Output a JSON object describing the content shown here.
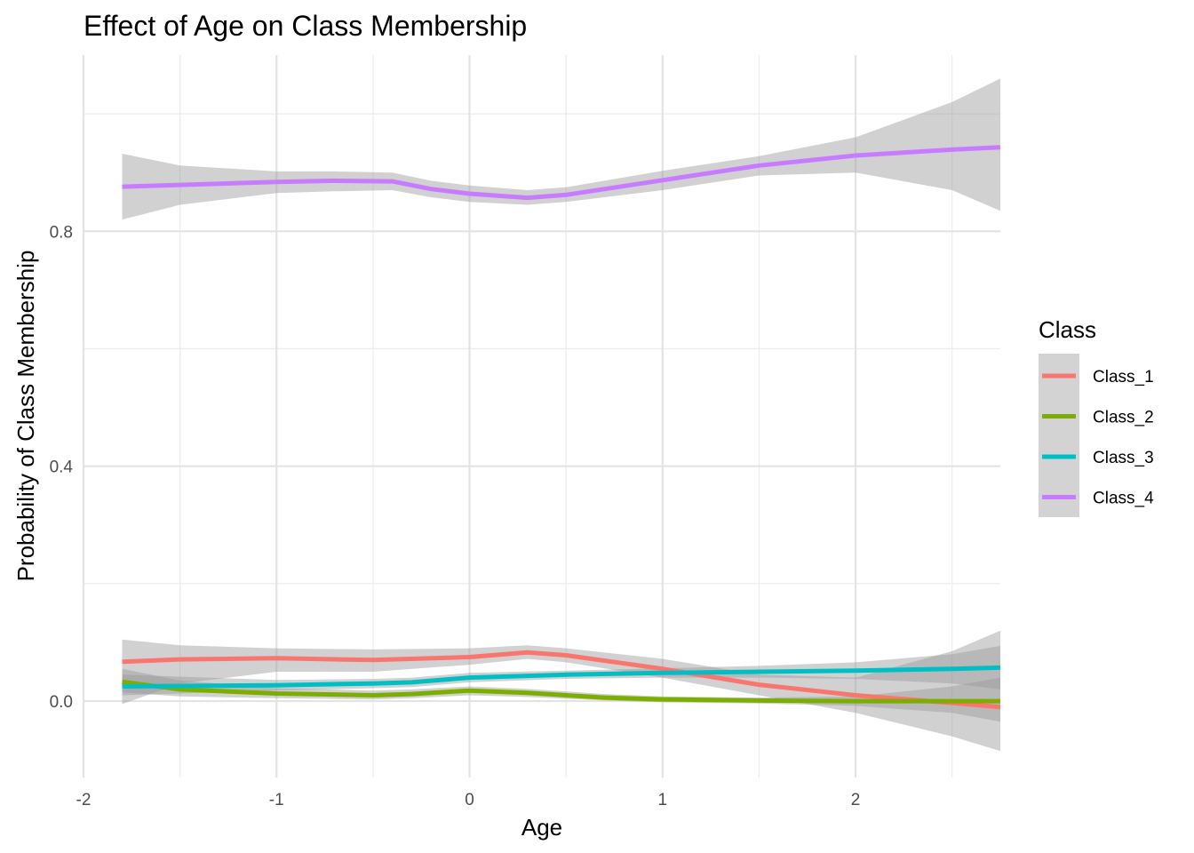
{
  "chart_data": {
    "type": "line",
    "title": "Effect of Age on Class Membership",
    "xlabel": "Age",
    "ylabel": "Probability of Class Membership",
    "xlim": [
      -2,
      2.75
    ],
    "ylim": [
      -0.13,
      1.1
    ],
    "x_ticks": [
      "-2",
      "-1",
      "0",
      "1",
      "2"
    ],
    "x_tick_values": [
      -2,
      -1,
      0,
      1,
      2
    ],
    "y_ticks": [
      "0.0",
      "0.4",
      "0.8"
    ],
    "y_tick_values": [
      0.0,
      0.4,
      0.8
    ],
    "grid": true,
    "legend": {
      "title": "Class",
      "position": "right"
    },
    "series": [
      {
        "name": "Class_1",
        "color": "#F8766D",
        "x": [
          -1.8,
          -1.5,
          -1.0,
          -0.5,
          0.0,
          0.3,
          0.5,
          1.0,
          1.5,
          2.0,
          2.5,
          2.75
        ],
        "y": [
          0.067,
          0.071,
          0.073,
          0.07,
          0.075,
          0.083,
          0.078,
          0.055,
          0.028,
          0.01,
          -0.003,
          -0.01
        ],
        "lower": [
          -0.005,
          0.03,
          0.05,
          0.05,
          0.062,
          0.072,
          0.066,
          0.04,
          0.01,
          -0.02,
          -0.06,
          -0.085
        ],
        "upper": [
          0.105,
          0.095,
          0.09,
          0.088,
          0.09,
          0.095,
          0.09,
          0.072,
          0.045,
          0.04,
          0.085,
          0.12
        ]
      },
      {
        "name": "Class_2",
        "color": "#7CAE00",
        "x": [
          -1.8,
          -1.5,
          -1.0,
          -0.5,
          -0.3,
          0.0,
          0.3,
          0.7,
          1.0,
          1.5,
          2.0,
          2.5,
          2.75
        ],
        "y": [
          0.033,
          0.02,
          0.013,
          0.01,
          0.012,
          0.018,
          0.014,
          0.006,
          0.003,
          0.001,
          0.0,
          0.0,
          0.0
        ],
        "lower": [
          0.015,
          0.008,
          0.005,
          0.003,
          0.005,
          0.01,
          0.007,
          0.001,
          -0.002,
          -0.004,
          -0.008,
          -0.02,
          -0.035
        ],
        "upper": [
          0.055,
          0.035,
          0.022,
          0.018,
          0.02,
          0.025,
          0.021,
          0.012,
          0.008,
          0.006,
          0.008,
          0.025,
          0.04
        ]
      },
      {
        "name": "Class_3",
        "color": "#00BFC4",
        "x": [
          -1.8,
          -1.0,
          -0.5,
          -0.3,
          0.0,
          0.5,
          1.0,
          1.5,
          2.0,
          2.5,
          2.75
        ],
        "y": [
          0.025,
          0.027,
          0.03,
          0.032,
          0.04,
          0.045,
          0.048,
          0.05,
          0.052,
          0.055,
          0.057
        ],
        "lower": [
          0.01,
          0.018,
          0.022,
          0.024,
          0.032,
          0.038,
          0.04,
          0.04,
          0.038,
          0.03,
          0.02
        ],
        "upper": [
          0.045,
          0.036,
          0.038,
          0.04,
          0.048,
          0.052,
          0.056,
          0.06,
          0.066,
          0.08,
          0.094
        ]
      },
      {
        "name": "Class_4",
        "color": "#C77CFF",
        "x": [
          -1.8,
          -1.5,
          -1.0,
          -0.7,
          -0.4,
          -0.2,
          0.0,
          0.3,
          0.5,
          1.0,
          1.5,
          2.0,
          2.5,
          2.75
        ],
        "y": [
          0.876,
          0.879,
          0.884,
          0.886,
          0.885,
          0.872,
          0.864,
          0.857,
          0.862,
          0.887,
          0.912,
          0.929,
          0.939,
          0.943
        ],
        "lower": [
          0.82,
          0.845,
          0.865,
          0.868,
          0.87,
          0.858,
          0.85,
          0.845,
          0.85,
          0.87,
          0.895,
          0.9,
          0.87,
          0.835
        ],
        "upper": [
          0.932,
          0.912,
          0.902,
          0.902,
          0.9,
          0.886,
          0.878,
          0.87,
          0.875,
          0.903,
          0.928,
          0.96,
          1.02,
          1.06
        ]
      }
    ]
  }
}
